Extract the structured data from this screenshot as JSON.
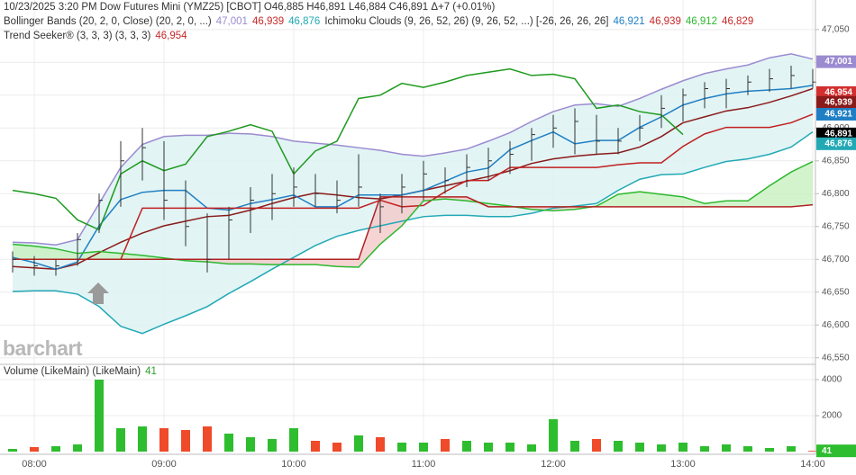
{
  "chart_data": [
    {
      "type": "ohlc",
      "header_lines": [
        [
          {
            "text": "10/23/2025  3:20 PM Dow Futures Mini (YMZ25) [CBOT] O46,885 H46,891 L46,884 C46,891 Δ+7 (+0.01%)",
            "color": "#333333"
          }
        ],
        [
          {
            "text": "Bollinger Bands (20, 2, 0, Close)  (20, 2, 0, ...)",
            "color": "#333333"
          },
          {
            "text": "47,001",
            "color": "#9b8bd0"
          },
          {
            "text": "46,939",
            "color": "#c62828"
          },
          {
            "text": "46,876",
            "color": "#22a9b5"
          },
          {
            "text": "Ichimoku Clouds (9, 26, 52, 26)  (9, 26, 52, ...)  [-26, 26, 26, 26]",
            "color": "#333333"
          },
          {
            "text": "46,921",
            "color": "#1f7fc4"
          },
          {
            "text": "46,939",
            "color": "#c62828"
          },
          {
            "text": "46,912",
            "color": "#2db82d"
          },
          {
            "text": "46,829",
            "color": "#c62828"
          }
        ],
        [
          {
            "text": "Trend Seeker® (3, 3, 3)  (3, 3, 3)",
            "color": "#333333"
          },
          {
            "text": "46,954",
            "color": "#c62828"
          }
        ]
      ],
      "watermark": "barchart",
      "categories": [
        null,
        "08:00",
        null,
        null,
        null,
        null,
        null,
        "09:00",
        null,
        null,
        null,
        null,
        null,
        "10:00",
        null,
        null,
        null,
        null,
        null,
        "11:00",
        null,
        null,
        null,
        null,
        null,
        "12:00",
        null,
        null,
        null,
        null,
        null,
        "13:00",
        null,
        null,
        null,
        null,
        null,
        "14:00"
      ],
      "high": [
        46712,
        46705,
        46700,
        46740,
        46800,
        46880,
        46900,
        46880,
        46820,
        46770,
        46780,
        46810,
        46830,
        46840,
        46830,
        46820,
        46860,
        46800,
        46830,
        46850,
        46840,
        46860,
        46870,
        46880,
        46900,
        46920,
        46930,
        46920,
        46900,
        46920,
        46950,
        46960,
        46970,
        46975,
        46980,
        46990,
        46995,
        46990
      ],
      "low": [
        46680,
        46675,
        46675,
        46690,
        46740,
        46780,
        46820,
        46760,
        46720,
        46680,
        46700,
        46740,
        46760,
        46780,
        46780,
        46770,
        46780,
        46740,
        46770,
        46790,
        46800,
        46810,
        46820,
        46830,
        46850,
        46870,
        46860,
        46860,
        46860,
        46880,
        46900,
        46910,
        46930,
        46930,
        46950,
        46955,
        46960,
        46960
      ],
      "close": [
        46700,
        46690,
        46690,
        46730,
        46790,
        46850,
        46870,
        46790,
        46750,
        46700,
        46760,
        46790,
        46800,
        46810,
        46800,
        46790,
        46810,
        46780,
        46810,
        46830,
        46820,
        46840,
        46850,
        46860,
        46890,
        46900,
        46910,
        46880,
        46880,
        46900,
        46930,
        46950,
        46960,
        46960,
        46970,
        46975,
        46980,
        46970
      ],
      "bar_color": "#333333",
      "band_fill": "#dff3f3",
      "cloud_colors": [
        "#c8f0c0",
        "#f4c9c9"
      ],
      "series": [
        {
          "color": "#9b8bd0",
          "values": [
            46726,
            46725,
            46722,
            46730,
            46785,
            46840,
            46875,
            46887,
            46889,
            46889,
            46892,
            46891,
            46887,
            46880,
            46877,
            46874,
            46870,
            46866,
            46860,
            46857,
            46862,
            46868,
            46880,
            46893,
            46910,
            46925,
            46935,
            46937,
            46933,
            46945,
            46959,
            46972,
            46983,
            46990,
            46996,
            47007,
            47013,
            47005
          ]
        },
        {
          "color": "#8b1a1a",
          "values": [
            46689,
            46687,
            46685,
            46693,
            46710,
            46726,
            46740,
            46751,
            46758,
            46765,
            46767,
            46775,
            46785,
            46794,
            46801,
            46798,
            46794,
            46792,
            46798,
            46805,
            46812,
            46819,
            46826,
            46835,
            46846,
            46853,
            46857,
            46860,
            46862,
            46871,
            46887,
            46908,
            46917,
            46926,
            46931,
            46939,
            46949,
            46960
          ]
        },
        {
          "color": "#22a9b5",
          "values": [
            46651,
            46652,
            46652,
            46647,
            46628,
            46598,
            46587,
            46601,
            46614,
            46628,
            46648,
            46666,
            46685,
            46703,
            46721,
            46735,
            46744,
            46751,
            46758,
            46765,
            46767,
            46767,
            46765,
            46765,
            46770,
            46778,
            46781,
            46785,
            46805,
            46822,
            46829,
            46830,
            46840,
            46849,
            46853,
            46860,
            46871,
            46894
          ]
        },
        {
          "color": "#1f7fc4",
          "values": [
            46703,
            46695,
            46685,
            46696,
            46751,
            46791,
            46802,
            46805,
            46805,
            46778,
            46775,
            46785,
            46791,
            46798,
            46780,
            46780,
            46798,
            46798,
            46798,
            46805,
            46819,
            46833,
            46839,
            46867,
            46881,
            46894,
            46876,
            46881,
            46881,
            46901,
            46917,
            46935,
            46945,
            46952,
            46956,
            46958,
            46960,
            46965
          ]
        },
        {
          "color": "#c21f1f",
          "values": [
            46700,
            46700,
            46700,
            46700,
            46700,
            46700,
            46778,
            46778,
            46778,
            46778,
            46778,
            46778,
            46778,
            46778,
            46778,
            46778,
            46778,
            46790,
            46780,
            46782,
            46803,
            46820,
            46820,
            46840,
            46840,
            46840,
            46840,
            46840,
            46844,
            46847,
            46847,
            46872,
            46891,
            46901,
            46901,
            46901,
            46908,
            46921
          ]
        },
        {
          "color": "#2db82d",
          "values": [
            46723,
            46720,
            46716,
            46709,
            46712,
            46709,
            46706,
            46702,
            46698,
            46696,
            46693,
            46693,
            46692,
            46692,
            46692,
            46689,
            46688,
            46723,
            46751,
            46789,
            46792,
            46789,
            46785,
            46781,
            46776,
            46774,
            46776,
            46781,
            46799,
            46803,
            46799,
            46795,
            46785,
            46789,
            46789,
            46812,
            46833,
            46849
          ]
        },
        {
          "color": "#b22222",
          "values": [
            46700,
            46700,
            46700,
            46700,
            46700,
            46700,
            46700,
            46700,
            46700,
            46700,
            46700,
            46700,
            46700,
            46700,
            46700,
            46700,
            46700,
            46795,
            46795,
            46795,
            46795,
            46795,
            46780,
            46780,
            46780,
            46780,
            46780,
            46780,
            46780,
            46780,
            46780,
            46780,
            46780,
            46780,
            46780,
            46780,
            46780,
            46783
          ]
        },
        {
          "color": "#1e9a1e",
          "values": [
            46805,
            46800,
            46793,
            46760,
            46745,
            46830,
            46850,
            46835,
            46845,
            46887,
            46895,
            46905,
            46895,
            46830,
            46865,
            46880,
            46945,
            46950,
            46968,
            46962,
            46970,
            46980,
            46985,
            46990,
            46980,
            46982,
            46975,
            46930,
            46935,
            46925,
            46920,
            46890,
            null,
            null,
            null,
            null,
            null,
            null
          ]
        }
      ],
      "ylim": [
        46540,
        47095
      ],
      "yticks": [
        {
          "value": 47050,
          "label": "47,050"
        },
        {
          "value": 47000,
          "label": "47,000"
        },
        {
          "value": 46950,
          "label": "46,950"
        },
        {
          "value": 46900,
          "label": "46,900"
        },
        {
          "value": 46850,
          "label": "46,850"
        },
        {
          "value": 46800,
          "label": "46,800"
        },
        {
          "value": 46750,
          "label": "46,750"
        },
        {
          "value": 46700,
          "label": "46,700"
        },
        {
          "value": 46650,
          "label": "46,650"
        },
        {
          "value": 46600,
          "label": "46,600"
        },
        {
          "value": 46550,
          "label": "46,550"
        }
      ],
      "last_labels": [
        {
          "value": 47001,
          "label": "47,001",
          "color": "#9b8bd0"
        },
        {
          "value": 46954,
          "label": "46,954",
          "color": "#d32f2f"
        },
        {
          "value": 46939,
          "label": "46,939",
          "color": "#8b1a1a"
        },
        {
          "value": 46921,
          "label": "46,921",
          "color": "#1f7fc4"
        },
        {
          "value": 46891,
          "label": "46,891",
          "color": "#000000"
        },
        {
          "value": 46876,
          "label": "46,876",
          "color": "#22a9b5"
        }
      ],
      "grid": true
    },
    {
      "type": "bar",
      "header_lines": [
        [
          {
            "text": "Volume (LikeMain)  (LikeMain)",
            "color": "#333333"
          },
          {
            "text": "41",
            "color": "#2e9e2e"
          }
        ]
      ],
      "values": [
        150,
        250,
        300,
        400,
        4000,
        1300,
        1400,
        1300,
        1200,
        1400,
        1000,
        800,
        700,
        1300,
        600,
        500,
        900,
        800,
        500,
        500,
        700,
        600,
        500,
        500,
        400,
        1800,
        600,
        700,
        600,
        500,
        400,
        500,
        300,
        400,
        300,
        200,
        300,
        41
      ],
      "up_color": "#2ebd2e",
      "down_color": "#ef4a2a",
      "ylim": [
        0,
        4500
      ],
      "yticks": [
        4000,
        2000
      ],
      "last_label": {
        "value": 41,
        "label": "41",
        "color": "#2ebd2e"
      },
      "grid": true
    }
  ]
}
